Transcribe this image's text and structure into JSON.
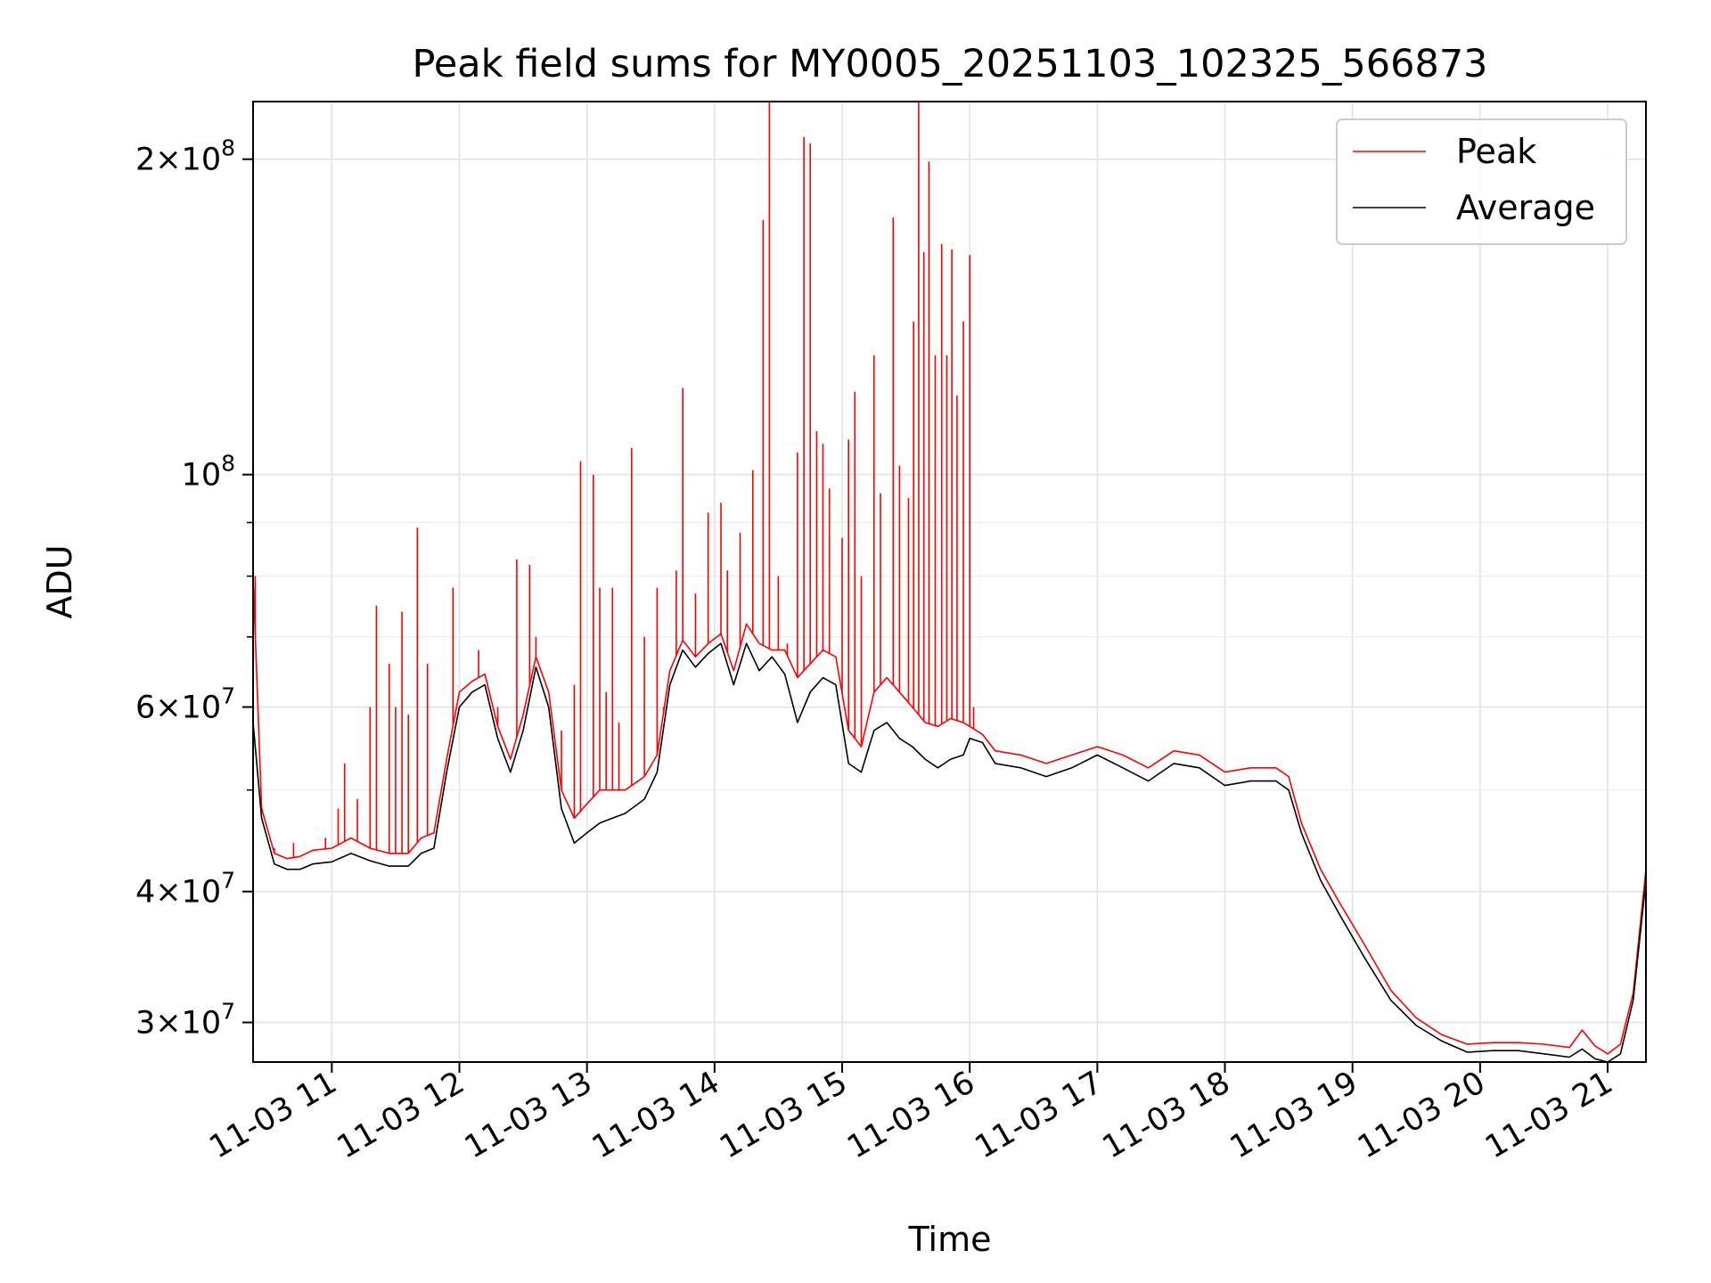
{
  "chart_data": {
    "type": "line",
    "title": "Peak field sums for MY0005_20251103_102325_566873",
    "xlabel": "Time",
    "ylabel": "ADU",
    "yscale": "log",
    "ylim": [
      27500000,
      227000000
    ],
    "xlim": [
      10.383,
      21.3
    ],
    "grid": true,
    "legend_position": "top-right",
    "x_ticks": [
      {
        "value": 11,
        "label": "11-03 11"
      },
      {
        "value": 12,
        "label": "11-03 12"
      },
      {
        "value": 13,
        "label": "11-03 13"
      },
      {
        "value": 14,
        "label": "11-03 14"
      },
      {
        "value": 15,
        "label": "11-03 15"
      },
      {
        "value": 16,
        "label": "11-03 16"
      },
      {
        "value": 17,
        "label": "11-03 17"
      },
      {
        "value": 18,
        "label": "11-03 18"
      },
      {
        "value": 19,
        "label": "11-03 19"
      },
      {
        "value": 20,
        "label": "11-03 20"
      },
      {
        "value": 21,
        "label": "11-03 21"
      }
    ],
    "y_ticks": [
      {
        "value": 30000000,
        "mant": "3",
        "exp": "7"
      },
      {
        "value": 40000000,
        "mant": "4",
        "exp": "7"
      },
      {
        "value": 60000000,
        "mant": "6",
        "exp": "7"
      },
      {
        "value": 100000000,
        "mant": "",
        "exp": "8"
      },
      {
        "value": 200000000,
        "mant": "2",
        "exp": "8"
      }
    ],
    "y_minor_ticks": [
      50000000,
      70000000,
      80000000,
      90000000
    ],
    "series": [
      {
        "name": "Average",
        "color": "#000000",
        "x": [
          10.383,
          10.45,
          10.55,
          10.65,
          10.75,
          10.85,
          11.0,
          11.15,
          11.3,
          11.45,
          11.6,
          11.7,
          11.8,
          11.9,
          12.0,
          12.1,
          12.2,
          12.3,
          12.4,
          12.5,
          12.6,
          12.7,
          12.8,
          12.9,
          13.0,
          13.1,
          13.2,
          13.3,
          13.45,
          13.55,
          13.65,
          13.75,
          13.85,
          13.95,
          14.05,
          14.15,
          14.25,
          14.35,
          14.45,
          14.55,
          14.65,
          14.75,
          14.85,
          14.95,
          15.05,
          15.15,
          15.25,
          15.35,
          15.45,
          15.55,
          15.65,
          15.75,
          15.85,
          15.95,
          16.0,
          16.1,
          16.2,
          16.4,
          16.6,
          16.8,
          17.0,
          17.2,
          17.4,
          17.6,
          17.8,
          18.0,
          18.2,
          18.4,
          18.5,
          18.6,
          18.75,
          18.9,
          19.1,
          19.3,
          19.5,
          19.7,
          19.9,
          20.1,
          20.3,
          20.5,
          20.7,
          20.8,
          20.9,
          21.0,
          21.1,
          21.2,
          21.3
        ],
        "values": [
          58000000,
          47000000,
          42500000,
          42000000,
          42000000,
          42500000,
          42700000,
          43500000,
          42800000,
          42300000,
          42300000,
          43500000,
          44000000,
          52000000,
          60000000,
          62000000,
          63000000,
          56000000,
          52000000,
          57000000,
          65500000,
          60000000,
          48000000,
          44500000,
          45500000,
          46500000,
          47000000,
          47500000,
          49000000,
          52000000,
          63000000,
          68000000,
          65500000,
          67500000,
          69000000,
          63000000,
          69000000,
          65000000,
          67000000,
          64500000,
          58000000,
          62000000,
          64000000,
          63000000,
          53000000,
          52000000,
          57000000,
          58000000,
          56000000,
          55000000,
          53500000,
          52500000,
          53500000,
          54000000,
          56000000,
          55500000,
          53000000,
          52500000,
          51500000,
          52500000,
          54000000,
          52500000,
          51000000,
          53000000,
          52500000,
          50500000,
          51000000,
          51000000,
          50000000,
          45500000,
          41000000,
          38000000,
          34500000,
          31500000,
          29800000,
          28800000,
          28100000,
          28200000,
          28200000,
          28000000,
          27800000,
          28300000,
          27700000,
          27500000,
          28000000,
          31500000,
          41000000
        ]
      },
      {
        "name": "Peak",
        "color": "#ff0000",
        "x": [
          10.383,
          10.45,
          10.55,
          10.65,
          10.75,
          10.85,
          11.0,
          11.15,
          11.3,
          11.45,
          11.6,
          11.7,
          11.8,
          11.9,
          12.0,
          12.1,
          12.2,
          12.3,
          12.4,
          12.5,
          12.6,
          12.7,
          12.8,
          12.9,
          13.0,
          13.1,
          13.2,
          13.3,
          13.45,
          13.55,
          13.65,
          13.75,
          13.85,
          13.95,
          14.05,
          14.15,
          14.25,
          14.35,
          14.45,
          14.55,
          14.65,
          14.75,
          14.85,
          14.95,
          15.05,
          15.15,
          15.25,
          15.35,
          15.45,
          15.55,
          15.65,
          15.75,
          15.85,
          15.95,
          16.0,
          16.1,
          16.2,
          16.4,
          16.6,
          16.8,
          17.0,
          17.2,
          17.4,
          17.6,
          17.8,
          18.0,
          18.2,
          18.4,
          18.5,
          18.6,
          18.75,
          18.9,
          19.1,
          19.3,
          19.5,
          19.7,
          19.9,
          20.1,
          20.3,
          20.5,
          20.7,
          20.8,
          20.9,
          21.0,
          21.1,
          21.2,
          21.3
        ],
        "values": [
          80000000,
          48000000,
          43500000,
          43000000,
          43200000,
          43800000,
          44000000,
          45000000,
          44000000,
          43500000,
          43500000,
          45000000,
          45500000,
          53500000,
          62000000,
          63500000,
          64500000,
          57500000,
          53500000,
          59000000,
          67000000,
          62000000,
          50000000,
          47000000,
          48500000,
          50000000,
          50000000,
          50000000,
          51500000,
          54000000,
          65000000,
          69500000,
          67000000,
          69000000,
          70500000,
          65000000,
          72000000,
          69000000,
          68000000,
          68000000,
          64000000,
          66000000,
          68000000,
          67000000,
          57000000,
          55000000,
          62000000,
          64000000,
          62000000,
          60000000,
          58000000,
          57500000,
          58500000,
          58000000,
          57500000,
          56500000,
          54500000,
          54000000,
          53000000,
          54000000,
          55000000,
          54000000,
          52500000,
          54500000,
          54000000,
          52000000,
          52500000,
          52500000,
          51500000,
          46500000,
          42000000,
          39000000,
          35500000,
          32200000,
          30300000,
          29200000,
          28600000,
          28700000,
          28700000,
          28600000,
          28400000,
          29500000,
          28500000,
          28000000,
          28600000,
          32000000,
          42000000
        ],
        "spikes": [
          [
            10.4,
            80000000
          ],
          [
            10.55,
            44000000
          ],
          [
            10.7,
            44500000
          ],
          [
            10.95,
            45000000
          ],
          [
            11.05,
            48000000
          ],
          [
            11.1,
            53000000
          ],
          [
            11.2,
            49000000
          ],
          [
            11.3,
            60000000
          ],
          [
            11.35,
            75000000
          ],
          [
            11.45,
            66000000
          ],
          [
            11.5,
            60000000
          ],
          [
            11.55,
            74000000
          ],
          [
            11.6,
            59000000
          ],
          [
            11.67,
            89000000
          ],
          [
            11.75,
            66000000
          ],
          [
            11.95,
            78000000
          ],
          [
            12.15,
            68000000
          ],
          [
            12.3,
            60000000
          ],
          [
            12.45,
            83000000
          ],
          [
            12.55,
            82000000
          ],
          [
            12.6,
            70000000
          ],
          [
            12.8,
            57000000
          ],
          [
            12.9,
            63000000
          ],
          [
            12.95,
            103000000
          ],
          [
            13.05,
            100000000
          ],
          [
            13.1,
            78000000
          ],
          [
            13.15,
            62000000
          ],
          [
            13.2,
            78000000
          ],
          [
            13.25,
            58000000
          ],
          [
            13.35,
            106000000
          ],
          [
            13.45,
            70000000
          ],
          [
            13.55,
            78000000
          ],
          [
            13.6,
            60000000
          ],
          [
            13.7,
            81000000
          ],
          [
            13.75,
            121000000
          ],
          [
            13.85,
            77000000
          ],
          [
            13.95,
            92000000
          ],
          [
            14.05,
            94000000
          ],
          [
            14.1,
            81000000
          ],
          [
            14.2,
            88000000
          ],
          [
            14.3,
            101000000
          ],
          [
            14.38,
            175000000
          ],
          [
            14.43,
            229000000
          ],
          [
            14.5,
            80000000
          ],
          [
            14.57,
            69000000
          ],
          [
            14.65,
            105000000
          ],
          [
            14.7,
            210000000
          ],
          [
            14.75,
            207000000
          ],
          [
            14.8,
            110000000
          ],
          [
            14.85,
            107000000
          ],
          [
            14.9,
            97000000
          ],
          [
            15.0,
            87000000
          ],
          [
            15.05,
            108000000
          ],
          [
            15.1,
            120000000
          ],
          [
            15.15,
            80000000
          ],
          [
            15.25,
            130000000
          ],
          [
            15.3,
            96000000
          ],
          [
            15.4,
            176000000
          ],
          [
            15.45,
            102000000
          ],
          [
            15.52,
            95000000
          ],
          [
            15.56,
            140000000
          ],
          [
            15.6,
            229000000
          ],
          [
            15.64,
            163000000
          ],
          [
            15.68,
            199000000
          ],
          [
            15.73,
            130000000
          ],
          [
            15.78,
            166000000
          ],
          [
            15.82,
            130000000
          ],
          [
            15.86,
            164000000
          ],
          [
            15.9,
            119000000
          ],
          [
            15.95,
            140000000
          ],
          [
            16.0,
            162000000
          ],
          [
            16.03,
            60000000
          ]
        ]
      }
    ]
  }
}
